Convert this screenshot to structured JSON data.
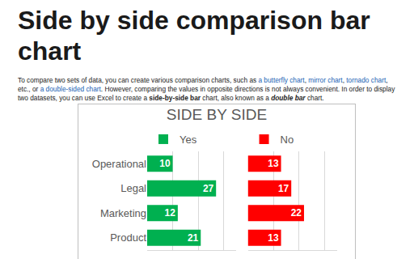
{
  "heading": "Side by side comparison bar chart",
  "paragraph": [
    {
      "text": "To compare two sets of data, you can create various comparison charts, such as "
    },
    {
      "text": "a butterfly chart",
      "style": "link"
    },
    {
      "text": ", "
    },
    {
      "text": "mirror chart",
      "style": "link"
    },
    {
      "text": ", "
    },
    {
      "text": "tornado chart",
      "style": "link"
    },
    {
      "text": ", etc., or "
    },
    {
      "text": "a double-sided chart",
      "style": "link"
    },
    {
      "text": ". However, comparing the values in opposite directions is not always convenient. In order to display two datasets, you can use Excel to create a "
    },
    {
      "text": "side-by-side bar",
      "style": "bold"
    },
    {
      "text": " chart, also known as a "
    },
    {
      "text": "double bar",
      "style": "bold-italic"
    },
    {
      "text": " chart."
    }
  ],
  "chart_data": {
    "type": "bar",
    "title": "SIDE BY SIDE",
    "orientation": "horizontal",
    "categories": [
      "Operational",
      "Legal",
      "Marketing",
      "Product"
    ],
    "series": [
      {
        "name": "Yes",
        "color": "#00b050",
        "values": [
          10,
          27,
          12,
          21
        ]
      },
      {
        "name": "No",
        "color": "#ff0000",
        "values": [
          13,
          17,
          22,
          13
        ]
      }
    ],
    "xlim": [
      0,
      35
    ],
    "xticks": [
      0,
      10,
      20,
      30
    ],
    "grid": true,
    "tick_labels": "y",
    "data_labels": true
  }
}
